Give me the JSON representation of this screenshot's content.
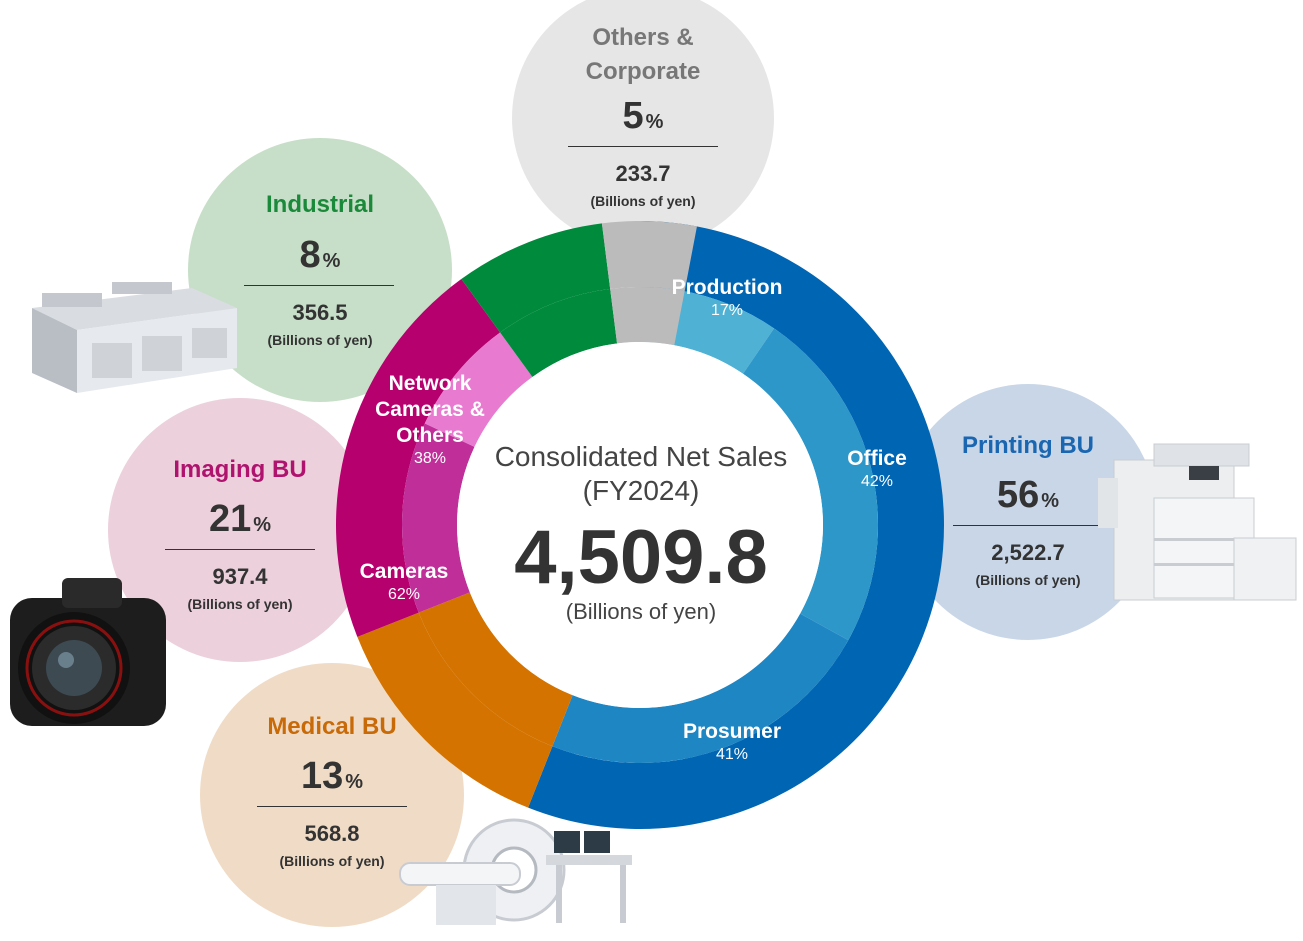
{
  "center": {
    "title": "Consolidated Net Sales",
    "period": "(FY2024)",
    "total": "4,509.8",
    "unit": "(Billions of yen)"
  },
  "bubbles": {
    "others": {
      "name_line1": "Others &",
      "name_line2": "Corporate",
      "pct": "5",
      "pct_sign": "%",
      "value": "233.7",
      "unit": "(Billions of yen)",
      "color": "#e6e6e6",
      "name_color": "#777777"
    },
    "industrial": {
      "name": "Industrial",
      "pct": "8",
      "pct_sign": "%",
      "value": "356.5",
      "unit": "(Billions of yen)",
      "color": "#c7dfc8",
      "name_color": "#1a8a3a"
    },
    "imaging": {
      "name": "Imaging BU",
      "pct": "21",
      "pct_sign": "%",
      "value": "937.4",
      "unit": "(Billions of yen)",
      "color": "#ecd0dc",
      "name_color": "#b0136e"
    },
    "medical": {
      "name": "Medical BU",
      "pct": "13",
      "pct_sign": "%",
      "value": "568.8",
      "unit": "(Billions of yen)",
      "color": "#f0dcc6",
      "name_color": "#c96a08"
    },
    "printing": {
      "name": "Printing BU",
      "pct": "56",
      "pct_sign": "%",
      "value": "2,522.7",
      "unit": "(Billions of yen)",
      "color": "#c8d6e8",
      "name_color": "#1a66b0"
    }
  },
  "segment_labels": {
    "production": {
      "name": "Production",
      "pct": "17%"
    },
    "office": {
      "name": "Office",
      "pct": "42%"
    },
    "prosumer": {
      "name": "Prosumer",
      "pct": "41%"
    },
    "network_line1": "Network",
    "network_line2": "Cameras &",
    "network_line3": "Others",
    "network_pct": "38%",
    "cameras": {
      "name": "Cameras",
      "pct": "62%"
    }
  },
  "chart_data": {
    "type": "pie",
    "subtype": "double-ring donut",
    "total": 4509.8,
    "unit": "(Billions of yen)",
    "outer_ring": [
      {
        "name": "Printing BU",
        "share_pct": 56,
        "value": 2522.7,
        "color": "#0065b3"
      },
      {
        "name": "Medical BU",
        "share_pct": 13,
        "value": 568.8,
        "color": "#d47300"
      },
      {
        "name": "Imaging BU",
        "share_pct": 21,
        "value": 937.4,
        "color": "#b5006e"
      },
      {
        "name": "Industrial",
        "share_pct": 8,
        "value": 356.5,
        "color": "#008a3c"
      },
      {
        "name": "Others & Corporate",
        "share_pct": 5,
        "value": 233.7,
        "color": "#bbbbbb"
      }
    ],
    "inner_ring": [
      {
        "parent": "Printing BU",
        "name": "Production",
        "share_pct": 17,
        "color": "#4fb1d4"
      },
      {
        "parent": "Printing BU",
        "name": "Office",
        "share_pct": 42,
        "color": "#2e97c9"
      },
      {
        "parent": "Printing BU",
        "name": "Prosumer",
        "share_pct": 41,
        "color": "#1f86c4"
      },
      {
        "parent": "Medical BU",
        "name": "",
        "share_pct": 100,
        "color": "#d47300"
      },
      {
        "parent": "Imaging BU",
        "name": "Cameras",
        "share_pct": 62,
        "color": "#c02e9a"
      },
      {
        "parent": "Imaging BU",
        "name": "Network Cameras & Others",
        "share_pct": 38,
        "color": "#e87bd0"
      },
      {
        "parent": "Industrial",
        "name": "",
        "share_pct": 100,
        "color": "#008a3c"
      },
      {
        "parent": "Others & Corporate",
        "name": "",
        "share_pct": 100,
        "color": "#bbbbbb"
      }
    ]
  }
}
